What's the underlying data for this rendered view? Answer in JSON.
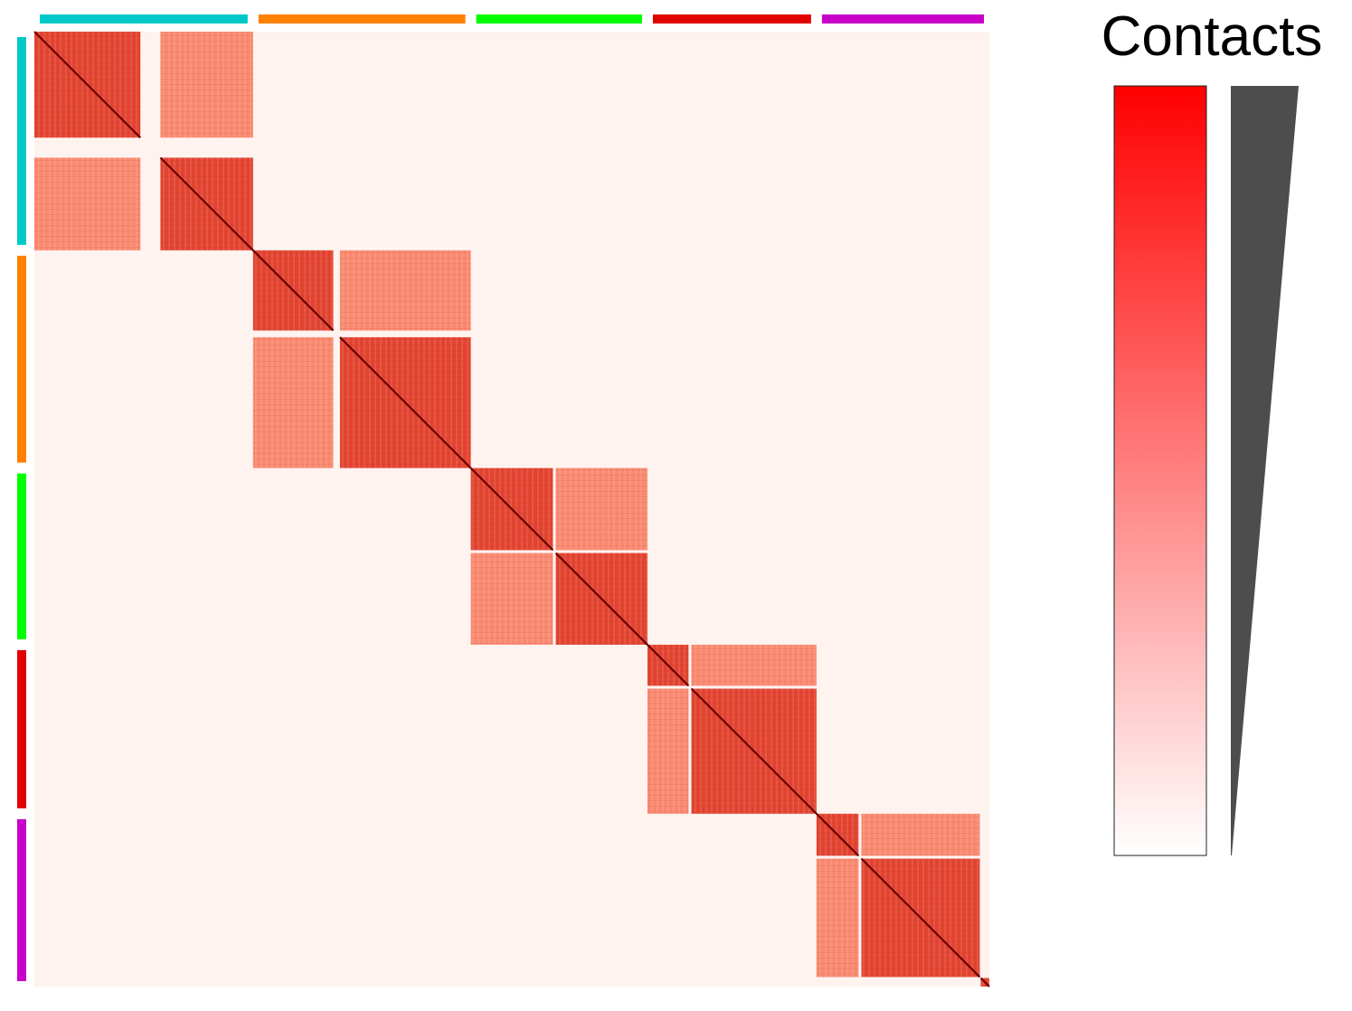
{
  "chart_data": {
    "type": "heatmap",
    "title": "",
    "xlabel": "",
    "ylabel": "",
    "grid": false,
    "legend": {
      "title": "Contacts",
      "placement": "right",
      "gradient": [
        "#fff5f0",
        "#ff0000"
      ]
    },
    "matrix_background_color": "#fff3ef",
    "diagonal_color": "#6b0000",
    "block_fill_color": "#f8755a",
    "block_dark_color": "#e03a26",
    "axis_extent": [
      0,
      1000
    ],
    "groups": [
      {
        "range": [
          0,
          229
        ],
        "color": "#00c8c8"
      },
      {
        "range": [
          229,
          457
        ],
        "color": "#ff8000"
      },
      {
        "range": [
          457,
          642
        ],
        "color": "#00ff00"
      },
      {
        "range": [
          642,
          819
        ],
        "color": "#e00000"
      },
      {
        "range": [
          819,
          1000
        ],
        "color": "#c800c8"
      }
    ],
    "blocks": [
      {
        "range": [
          0,
          111
        ],
        "color": "#00c8c8"
      },
      {
        "range": [
          132,
          229
        ],
        "color": "#00c8c8"
      },
      {
        "range": [
          229,
          313
        ],
        "color": "#ff8000"
      },
      {
        "range": [
          320,
          457
        ],
        "color": "#ff8000"
      },
      {
        "range": [
          457,
          543
        ],
        "color": "#00ff00"
      },
      {
        "range": [
          546,
          642
        ],
        "color": "#00ff00"
      },
      {
        "range": [
          642,
          685
        ],
        "color": "#e00000"
      },
      {
        "range": [
          688,
          819
        ],
        "color": "#e00000"
      },
      {
        "range": [
          819,
          863
        ],
        "color": "#c800c8"
      },
      {
        "range": [
          866,
          990
        ],
        "color": "#c800c8"
      },
      {
        "range": [
          991,
          1000
        ],
        "color": "#c800c8"
      }
    ],
    "contact_domains": [
      {
        "range": [
          0,
          229
        ]
      },
      {
        "range": [
          229,
          457
        ]
      },
      {
        "range": [
          457,
          642
        ]
      },
      {
        "range": [
          642,
          819
        ]
      },
      {
        "range": [
          819,
          990
        ]
      },
      {
        "range": [
          990,
          1000
        ]
      }
    ]
  }
}
